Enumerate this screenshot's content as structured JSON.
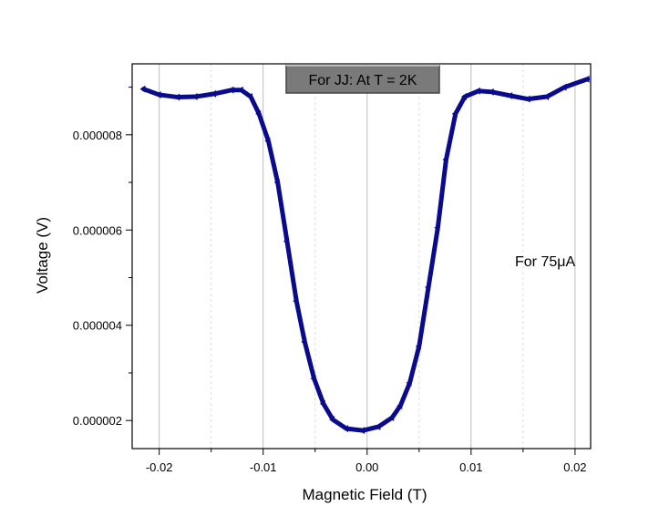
{
  "chart_data": {
    "type": "scatter",
    "title": "For JJ: At T = 2K",
    "annotation": "For 75μA",
    "xlabel": "Magnetic Field (T)",
    "ylabel": "Voltage (V)",
    "xlim": [
      -0.0226,
      0.0215
    ],
    "ylim": [
      1.41e-06,
      9.49e-06
    ],
    "xticks": [
      -0.02,
      -0.01,
      0.0,
      0.01,
      0.02
    ],
    "xtick_labels": [
      "-0.02",
      "-0.01",
      "0.00",
      "0.01",
      "0.02"
    ],
    "yticks": [
      2e-06,
      4e-06,
      6e-06,
      8e-06
    ],
    "ytick_labels": [
      "0.000002",
      "0.000004",
      "0.000006",
      "0.000008"
    ],
    "grid": true,
    "marker": "triangle-left",
    "color": "#0a0a8c",
    "title_box_color": "#7a7a7a",
    "x": [
      -0.0215,
      -0.02,
      -0.0182,
      -0.0165,
      -0.0147,
      -0.013,
      -0.0121,
      -0.0112,
      -0.0104,
      -0.0095,
      -0.0086,
      -0.0077,
      -0.0068,
      -0.006,
      -0.0051,
      -0.0042,
      -0.0033,
      -0.002,
      -0.0004,
      0.0011,
      0.0024,
      0.0032,
      0.0041,
      0.005,
      0.0059,
      0.0068,
      0.0076,
      0.0085,
      0.0094,
      0.0107,
      0.012,
      0.0138,
      0.0155,
      0.0173,
      0.019,
      0.0212
    ],
    "y": [
      8.96e-06,
      8.84e-06,
      8.79e-06,
      8.8e-06,
      8.86e-06,
      8.94e-06,
      8.94e-06,
      8.8e-06,
      8.44e-06,
      7.87e-06,
      7e-06,
      5.76e-06,
      4.51e-06,
      3.65e-06,
      2.88e-06,
      2.35e-06,
      2.02e-06,
      1.83e-06,
      1.79e-06,
      1.87e-06,
      2.06e-06,
      2.31e-06,
      2.79e-06,
      3.56e-06,
      4.8e-06,
      6.05e-06,
      7.48e-06,
      8.44e-06,
      8.8e-06,
      8.92e-06,
      8.9e-06,
      8.82e-06,
      8.75e-06,
      8.8e-06,
      9e-06,
      9.17e-06
    ]
  }
}
